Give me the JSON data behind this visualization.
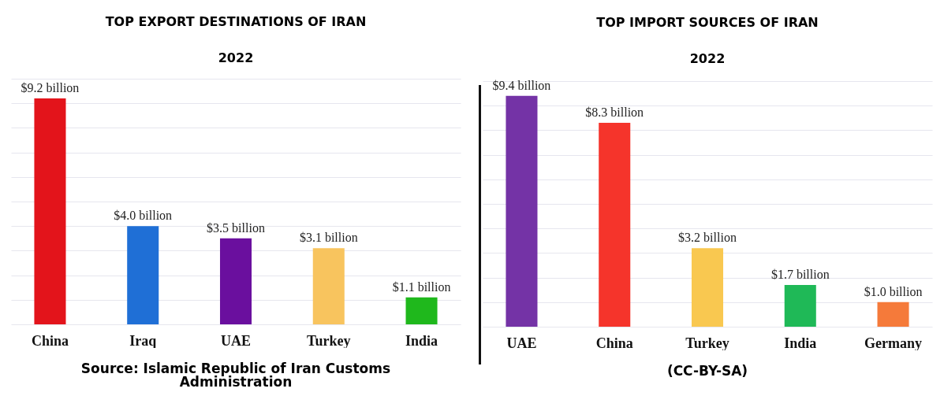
{
  "chart_data": [
    {
      "type": "bar",
      "title": "TOP EXPORT DESTINATIONS OF IRAN",
      "subtitle": "2022",
      "categories": [
        "China",
        "Iraq",
        "UAE",
        "Turkey",
        "India"
      ],
      "values": [
        9.2,
        4.0,
        3.5,
        3.1,
        1.1
      ],
      "value_labels": [
        "$9.2 billion",
        "$4.0 billion",
        "$3.5 billion",
        "$3.1 billion",
        "$1.1 billion"
      ],
      "colors": [
        "#e3141b",
        "#1f6fd6",
        "#6a0f9e",
        "#f8c45e",
        "#1fb81c"
      ],
      "ylim": [
        0,
        10
      ],
      "yticks": [
        {
          "value": 0,
          "label": null
        },
        {
          "value": 1,
          "label": null
        },
        {
          "value": 2,
          "label": null
        },
        {
          "value": 3,
          "label": null
        },
        {
          "value": 4,
          "label": null
        },
        {
          "value": 5,
          "label": null
        },
        {
          "value": 6,
          "label": null
        },
        {
          "value": 7,
          "label": null
        },
        {
          "value": 8,
          "label": null
        },
        {
          "value": 9,
          "label": null
        },
        {
          "value": 10,
          "label": null
        }
      ],
      "grid": "y",
      "tick_labels": "x",
      "annotations": [
        "Source: Islamic Republic of Iran Customs Administration"
      ]
    },
    {
      "type": "bar",
      "title": "TOP IMPORT SOURCES OF IRAN",
      "subtitle": "2022",
      "categories": [
        "UAE",
        "China",
        "Turkey",
        "India",
        "Germany"
      ],
      "values": [
        9.4,
        8.3,
        3.2,
        1.7,
        1.0
      ],
      "value_labels": [
        "$9.4 billion",
        "$8.3 billion",
        "$3.2 billion",
        "$1.7 billion",
        "$1.0 billion"
      ],
      "colors": [
        "#7433a6",
        "#f5342b",
        "#f9c850",
        "#1fb957",
        "#f57a3a"
      ],
      "ylim": [
        0,
        10
      ],
      "yticks": [
        {
          "value": 0,
          "label": null
        },
        {
          "value": 1,
          "label": null
        },
        {
          "value": 2,
          "label": null
        },
        {
          "value": 3,
          "label": null
        },
        {
          "value": 4,
          "label": null
        },
        {
          "value": 5,
          "label": null
        },
        {
          "value": 6,
          "label": null
        },
        {
          "value": 7,
          "label": null
        },
        {
          "value": 8,
          "label": null
        },
        {
          "value": 9,
          "label": null
        },
        {
          "value": 10,
          "label": null
        }
      ],
      "grid": "y",
      "tick_labels": "x",
      "annotations": [
        "(CC-BY-SA)"
      ]
    }
  ]
}
